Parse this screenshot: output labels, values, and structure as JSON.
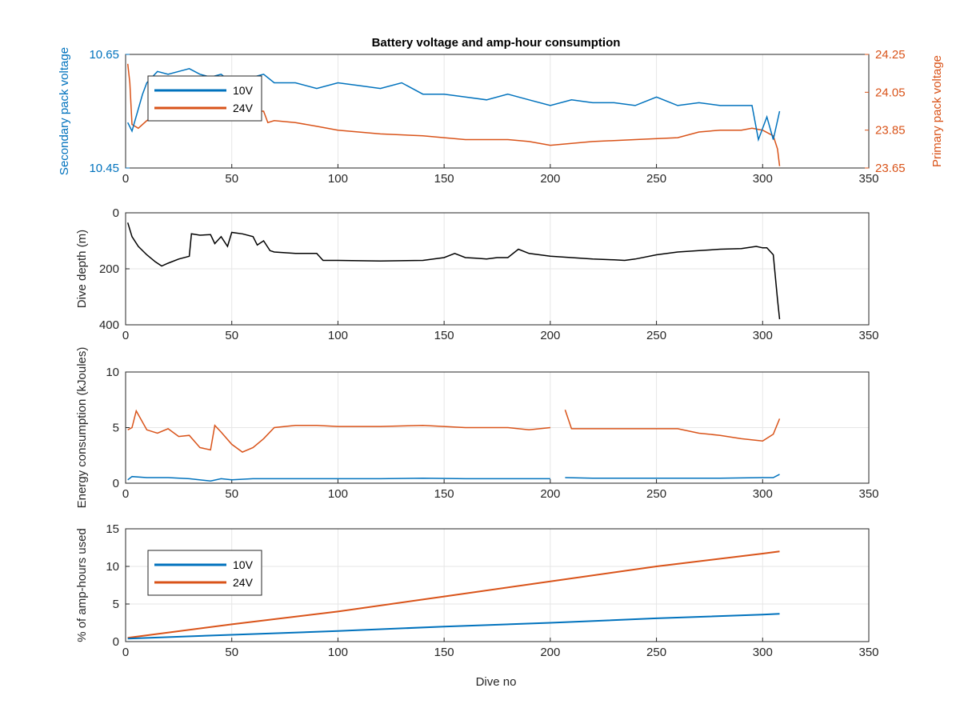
{
  "figure": {
    "title": "Battery voltage and amp-hour consumption",
    "xlabel": "Dive no"
  },
  "colors": {
    "c10V": "#0072BD",
    "c24V": "#D95319",
    "depth": "#000000",
    "axis": "#262626",
    "grid": "#e6e6e6"
  },
  "chart_data": [
    {
      "type": "line",
      "title": "Battery voltage and amp-hour consumption",
      "xlabel": "",
      "ylabel_left": "Secondary pack voltage",
      "ylabel_right": "Primary pack voltage",
      "xlim": [
        0,
        350
      ],
      "ylim_left": [
        10.45,
        10.65
      ],
      "ylim_right": [
        23.65,
        24.25
      ],
      "xticks": [
        0,
        50,
        100,
        150,
        200,
        250,
        300,
        350
      ],
      "yticks_left": [
        "10.45",
        "10.65"
      ],
      "yticks_right": [
        "23.65",
        "23.85",
        "24.05",
        "24.25"
      ],
      "grid": true,
      "legend": "top-left",
      "series": [
        {
          "name": "10V",
          "axis": "left",
          "x": [
            1,
            3,
            8,
            10,
            15,
            20,
            25,
            30,
            35,
            40,
            45,
            50,
            55,
            60,
            65,
            70,
            80,
            90,
            100,
            110,
            120,
            130,
            140,
            150,
            160,
            170,
            180,
            190,
            200,
            210,
            220,
            230,
            240,
            250,
            260,
            270,
            280,
            290,
            295,
            298,
            302,
            305,
            308
          ],
          "values": [
            10.53,
            10.515,
            10.58,
            10.6,
            10.62,
            10.615,
            10.62,
            10.625,
            10.615,
            10.61,
            10.615,
            10.6,
            10.605,
            10.61,
            10.615,
            10.6,
            10.6,
            10.59,
            10.6,
            10.595,
            10.59,
            10.6,
            10.58,
            10.58,
            10.575,
            10.57,
            10.58,
            10.57,
            10.56,
            10.57,
            10.565,
            10.565,
            10.56,
            10.575,
            10.56,
            10.565,
            10.56,
            10.56,
            10.56,
            10.5,
            10.54,
            10.5,
            10.55
          ]
        },
        {
          "name": "24V",
          "axis": "right",
          "x": [
            1,
            2,
            3,
            6,
            10,
            15,
            20,
            30,
            40,
            45,
            55,
            60,
            65,
            67,
            70,
            80,
            90,
            100,
            120,
            140,
            160,
            170,
            180,
            190,
            200,
            220,
            240,
            260,
            270,
            280,
            290,
            295,
            300,
            305,
            307,
            308
          ],
          "values": [
            24.2,
            24.1,
            23.88,
            23.86,
            23.9,
            23.93,
            23.94,
            23.95,
            23.94,
            23.95,
            23.95,
            23.95,
            23.95,
            23.89,
            23.9,
            23.89,
            23.87,
            23.85,
            23.83,
            23.82,
            23.8,
            23.8,
            23.8,
            23.79,
            23.77,
            23.79,
            23.8,
            23.81,
            23.84,
            23.85,
            23.85,
            23.86,
            23.85,
            23.82,
            23.75,
            23.66
          ]
        }
      ]
    },
    {
      "type": "line",
      "xlabel": "",
      "ylabel": "Dive depth (m)",
      "xlim": [
        0,
        350
      ],
      "ylim": [
        0,
        400
      ],
      "y_reversed": true,
      "xticks": [
        0,
        50,
        100,
        150,
        200,
        250,
        300,
        350
      ],
      "yticks": [
        "0",
        "200",
        "400"
      ],
      "grid": true,
      "series": [
        {
          "x": [
            1,
            3,
            6,
            10,
            14,
            17,
            20,
            25,
            30,
            31,
            35,
            40,
            42,
            45,
            48,
            50,
            55,
            60,
            62,
            65,
            68,
            70,
            80,
            90,
            93,
            100,
            120,
            140,
            150,
            155,
            160,
            165,
            170,
            175,
            180,
            185,
            190,
            200,
            210,
            220,
            230,
            235,
            240,
            250,
            260,
            270,
            280,
            290,
            297,
            300,
            302,
            305,
            307,
            308
          ],
          "values": [
            35,
            85,
            120,
            150,
            175,
            190,
            180,
            165,
            155,
            75,
            80,
            78,
            110,
            85,
            120,
            70,
            75,
            85,
            115,
            100,
            135,
            140,
            145,
            145,
            170,
            170,
            172,
            170,
            160,
            145,
            160,
            162,
            165,
            160,
            160,
            130,
            145,
            155,
            160,
            165,
            168,
            170,
            165,
            150,
            140,
            135,
            130,
            128,
            120,
            125,
            125,
            150,
            310,
            380
          ]
        }
      ]
    },
    {
      "type": "line",
      "xlabel": "",
      "ylabel": "Energy consumption (kJoules)",
      "xlim": [
        0,
        350
      ],
      "ylim": [
        0,
        10
      ],
      "xticks": [
        0,
        50,
        100,
        150,
        200,
        250,
        300,
        350
      ],
      "yticks": [
        "0",
        "5",
        "10"
      ],
      "grid": true,
      "series": [
        {
          "name": "24V",
          "x": [
            1,
            3,
            5,
            10,
            15,
            20,
            25,
            30,
            35,
            40,
            42,
            45,
            50,
            55,
            60,
            65,
            70,
            80,
            90,
            100,
            120,
            140,
            160,
            180,
            190,
            200,
            205,
            207,
            210,
            220,
            240,
            260,
            270,
            280,
            290,
            300,
            305,
            308
          ],
          "values": [
            4.8,
            5.0,
            6.5,
            4.8,
            4.5,
            4.9,
            4.2,
            4.3,
            3.2,
            3.0,
            5.2,
            4.6,
            3.5,
            2.8,
            3.2,
            4.0,
            5.0,
            5.2,
            5.2,
            5.1,
            5.1,
            5.2,
            5.0,
            5.0,
            4.8,
            5.0,
            null,
            6.6,
            4.9,
            4.9,
            4.9,
            4.9,
            4.5,
            4.3,
            4.0,
            3.8,
            4.4,
            5.8
          ]
        },
        {
          "name": "10V",
          "x": [
            1,
            3,
            10,
            20,
            30,
            40,
            45,
            50,
            60,
            80,
            100,
            120,
            140,
            160,
            180,
            200,
            205,
            207,
            220,
            240,
            260,
            280,
            300,
            305,
            308
          ],
          "values": [
            0.3,
            0.6,
            0.5,
            0.5,
            0.4,
            0.2,
            0.4,
            0.3,
            0.4,
            0.4,
            0.4,
            0.4,
            0.45,
            0.4,
            0.4,
            0.4,
            null,
            0.5,
            0.45,
            0.45,
            0.45,
            0.45,
            0.5,
            0.5,
            0.8
          ]
        }
      ]
    },
    {
      "type": "line",
      "xlabel": "Dive no",
      "ylabel": "% of amp-hours used",
      "xlim": [
        0,
        350
      ],
      "ylim": [
        0,
        15
      ],
      "xticks": [
        0,
        50,
        100,
        150,
        200,
        250,
        300,
        350
      ],
      "yticks": [
        "0",
        "5",
        "10",
        "15"
      ],
      "grid": true,
      "legend": "top-left",
      "series": [
        {
          "name": "10V",
          "x": [
            1,
            50,
            100,
            150,
            200,
            250,
            300,
            308
          ],
          "values": [
            0.4,
            0.9,
            1.4,
            2.0,
            2.5,
            3.1,
            3.6,
            3.7
          ]
        },
        {
          "name": "24V",
          "x": [
            1,
            50,
            100,
            150,
            200,
            250,
            300,
            308
          ],
          "values": [
            0.5,
            2.3,
            4.0,
            6.0,
            8.0,
            10.0,
            11.7,
            12.0
          ]
        }
      ]
    }
  ]
}
